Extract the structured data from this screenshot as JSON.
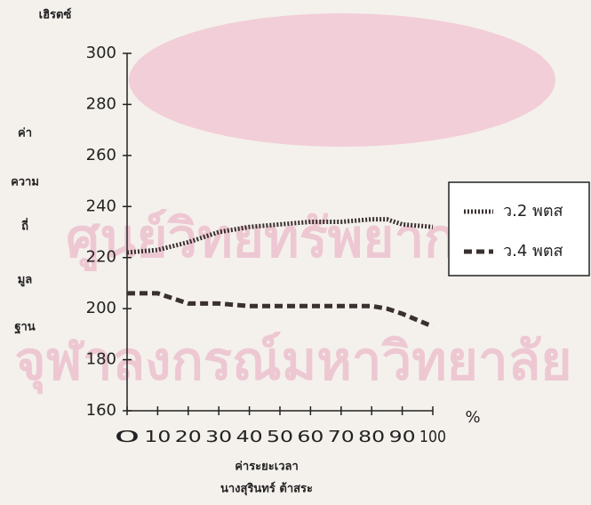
{
  "chart_data": {
    "type": "line",
    "y_unit_label": "เฮิรตซ์",
    "y_label_words": [
      "ค่า",
      "ความ",
      "ถี่",
      "มูล",
      "ฐาน"
    ],
    "x_label": "ค่าระยะเวลา",
    "x_unit_label": "%",
    "subtitle": "นางสุรินทร์ ต้าสระ",
    "watermark": [
      "ศูนย์วิทยทรัพยากร",
      "จุฬาลงกรณ์มหาวิทยาลัย"
    ],
    "x": [
      0,
      10,
      20,
      30,
      40,
      50,
      60,
      70,
      80,
      85,
      90,
      100
    ],
    "series": [
      {
        "name": "ว.2 พตส",
        "color": "#3a3030",
        "style": "dotted",
        "values": [
          222,
          223,
          226,
          230,
          232,
          233,
          234,
          234,
          235,
          235,
          233,
          232
        ]
      },
      {
        "name": "ว.4 พตส",
        "color": "#3a3030",
        "style": "dashed",
        "values": [
          206,
          206,
          202,
          202,
          201,
          201,
          201,
          201,
          201,
          200,
          198,
          193
        ]
      }
    ],
    "xlim": [
      0,
      100
    ],
    "xticks": [
      0,
      10,
      20,
      30,
      40,
      50,
      60,
      70,
      80,
      90,
      100
    ],
    "ylim": [
      160,
      300
    ],
    "yticks": [
      160,
      180,
      200,
      220,
      240,
      260,
      280,
      300
    ],
    "legend": "right",
    "grid": false
  }
}
